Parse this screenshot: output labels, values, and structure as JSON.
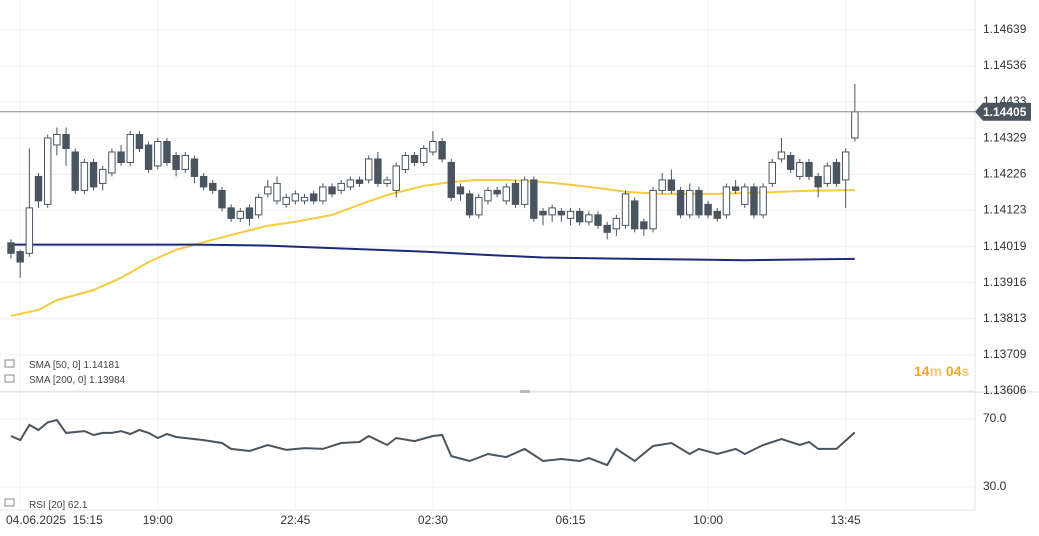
{
  "chart_data": {
    "type": "candlestick",
    "ylim": [
      1.13603,
      1.14725
    ],
    "yticks": [
      1.14639,
      1.14536,
      1.14433,
      1.14329,
      1.14226,
      1.14123,
      1.14019,
      1.13916,
      1.13813,
      1.13709,
      1.13606
    ],
    "xlim": [
      -1.2,
      105.1
    ],
    "xticks": [
      {
        "value": 1,
        "label": "04.06.2025  15:15"
      },
      {
        "value": 16,
        "label": "19:00"
      },
      {
        "value": 31,
        "label": "22:45"
      },
      {
        "value": 46,
        "label": "02:30"
      },
      {
        "value": 61,
        "label": "06:15"
      },
      {
        "value": 76,
        "label": "10:00"
      },
      {
        "value": 91,
        "label": "13:45"
      }
    ],
    "grid": true,
    "up_color": "#ffffff",
    "down_color": "#4a5560",
    "open": [
      1.1403,
      1.14005,
      1.14,
      1.1422,
      1.1414,
      1.1431,
      1.1434,
      1.1429,
      1.1418,
      1.1426,
      1.142,
      1.1423,
      1.1429,
      1.1426,
      1.1434,
      1.1431,
      1.1425,
      1.1432,
      1.1428,
      1.1424,
      1.1427,
      1.1422,
      1.142,
      1.1418,
      1.1413,
      1.141,
      1.1413,
      1.1411,
      1.1417,
      1.1415,
      1.1414,
      1.1415,
      1.1415,
      1.1417,
      1.1415,
      1.1419,
      1.1418,
      1.1419,
      1.1421,
      1.1421,
      1.1427,
      1.142,
      1.1418,
      1.1424,
      1.1428,
      1.1426,
      1.1429,
      1.1432,
      1.1426,
      1.1419,
      1.1417,
      1.1411,
      1.1415,
      1.1418,
      1.1415,
      1.142,
      1.1414,
      1.1421,
      1.1412,
      1.1411,
      1.1412,
      1.141,
      1.1412,
      1.1409,
      1.1411,
      1.1408,
      1.1407,
      1.1408,
      1.1415,
      1.1409,
      1.1407,
      1.1418,
      1.1421,
      1.1418,
      1.1411,
      1.1418,
      1.1414,
      1.1412,
      1.1411,
      1.1419,
      1.1414,
      1.1419,
      1.1411,
      1.142,
      1.1427,
      1.1428,
      1.1422,
      1.1426,
      1.1422,
      1.142,
      1.1426,
      1.1421,
      1.1433
    ],
    "high": [
      1.1404,
      1.1401,
      1.143,
      1.1423,
      1.1434,
      1.1436,
      1.1436,
      1.143,
      1.1427,
      1.1427,
      1.1425,
      1.143,
      1.1431,
      1.1435,
      1.1435,
      1.1432,
      1.1433,
      1.1433,
      1.1429,
      1.1429,
      1.1428,
      1.1423,
      1.1421,
      1.1419,
      1.1414,
      1.1413,
      1.1414,
      1.1417,
      1.1421,
      1.1422,
      1.1417,
      1.1418,
      1.1417,
      1.1418,
      1.142,
      1.142,
      1.1421,
      1.1422,
      1.1422,
      1.1428,
      1.1429,
      1.1422,
      1.1426,
      1.1429,
      1.1429,
      1.1431,
      1.1435,
      1.1433,
      1.1427,
      1.142,
      1.1418,
      1.1417,
      1.1419,
      1.1419,
      1.142,
      1.1421,
      1.1422,
      1.1422,
      1.1413,
      1.1414,
      1.1413,
      1.1413,
      1.1413,
      1.1412,
      1.1412,
      1.1409,
      1.1411,
      1.1418,
      1.1416,
      1.141,
      1.1419,
      1.1423,
      1.1424,
      1.1419,
      1.142,
      1.1419,
      1.1415,
      1.1413,
      1.142,
      1.1421,
      1.142,
      1.142,
      1.142,
      1.1427,
      1.1433,
      1.1429,
      1.1427,
      1.1427,
      1.1423,
      1.1426,
      1.1427,
      1.143,
      1.14485
    ],
    "low": [
      1.13985,
      1.1393,
      1.1399,
      1.1413,
      1.1413,
      1.1428,
      1.1425,
      1.1417,
      1.1417,
      1.1418,
      1.1418,
      1.1422,
      1.1425,
      1.1425,
      1.1429,
      1.1423,
      1.1424,
      1.1425,
      1.1422,
      1.1423,
      1.142,
      1.1418,
      1.1417,
      1.1412,
      1.1409,
      1.1409,
      1.1408,
      1.141,
      1.1416,
      1.1414,
      1.1413,
      1.1414,
      1.1414,
      1.1414,
      1.1414,
      1.1416,
      1.1417,
      1.1418,
      1.1419,
      1.142,
      1.1419,
      1.1419,
      1.1416,
      1.1423,
      1.1425,
      1.1425,
      1.1428,
      1.1426,
      1.1415,
      1.1415,
      1.141,
      1.141,
      1.1414,
      1.1416,
      1.1414,
      1.1413,
      1.1413,
      1.1409,
      1.1408,
      1.1409,
      1.1409,
      1.1408,
      1.1408,
      1.1408,
      1.1407,
      1.1404,
      1.1405,
      1.1407,
      1.1406,
      1.1405,
      1.1406,
      1.1417,
      1.1417,
      1.141,
      1.141,
      1.141,
      1.141,
      1.1409,
      1.141,
      1.1417,
      1.1413,
      1.141,
      1.141,
      1.1419,
      1.1426,
      1.1423,
      1.1421,
      1.1421,
      1.1416,
      1.1419,
      1.1419,
      1.1413,
      1.1432
    ],
    "close": [
      1.14,
      1.13975,
      1.1413,
      1.1415,
      1.1433,
      1.1434,
      1.143,
      1.1418,
      1.1426,
      1.1419,
      1.1424,
      1.1429,
      1.1426,
      1.1434,
      1.143,
      1.1424,
      1.1432,
      1.1426,
      1.1424,
      1.1428,
      1.1422,
      1.1419,
      1.1418,
      1.1413,
      1.141,
      1.1412,
      1.141,
      1.1416,
      1.1419,
      1.142,
      1.1416,
      1.1417,
      1.1416,
      1.1415,
      1.1419,
      1.1417,
      1.142,
      1.1421,
      1.142,
      1.1427,
      1.142,
      1.1421,
      1.1425,
      1.1428,
      1.1426,
      1.143,
      1.1432,
      1.1427,
      1.1416,
      1.1417,
      1.1411,
      1.1416,
      1.1418,
      1.1417,
      1.1419,
      1.1414,
      1.1421,
      1.141,
      1.1411,
      1.1413,
      1.1411,
      1.1412,
      1.1409,
      1.1411,
      1.1408,
      1.1406,
      1.141,
      1.1417,
      1.1407,
      1.1407,
      1.1418,
      1.1421,
      1.1418,
      1.1411,
      1.1418,
      1.1411,
      1.1411,
      1.141,
      1.1419,
      1.1418,
      1.1419,
      1.1411,
      1.1419,
      1.1426,
      1.1429,
      1.1424,
      1.1426,
      1.1422,
      1.1419,
      1.1425,
      1.142,
      1.1429,
      1.14405
    ],
    "current_price": 1.14405,
    "overlays": [
      {
        "name": "SMA [50, 0]",
        "last": 1.14181,
        "color": "#f5cc3d",
        "x": [
          0,
          3,
          5,
          9,
          12,
          15,
          18,
          22,
          25,
          28,
          31,
          35,
          38,
          41,
          45,
          48,
          51,
          54,
          58,
          61,
          64,
          67,
          71,
          74,
          77,
          81,
          84,
          87,
          92
        ],
        "values": [
          1.13821,
          1.13838,
          1.13866,
          1.13895,
          1.1393,
          1.13975,
          1.1401,
          1.14039,
          1.14059,
          1.14079,
          1.1409,
          1.1411,
          1.14139,
          1.14167,
          1.14193,
          1.14204,
          1.1421,
          1.1421,
          1.14204,
          1.14196,
          1.14187,
          1.14176,
          1.1417,
          1.1417,
          1.1417,
          1.14173,
          1.14176,
          1.14179,
          1.14181
        ]
      },
      {
        "name": "SMA [200, 0]",
        "last": 1.13984,
        "color": "#1f2a7a",
        "x": [
          0,
          10,
          20,
          28,
          35,
          45,
          52,
          58,
          65,
          75,
          80,
          85,
          92
        ],
        "values": [
          1.14025,
          1.14025,
          1.14025,
          1.14022,
          1.14015,
          1.14005,
          1.13995,
          1.13988,
          1.13985,
          1.13982,
          1.1398,
          1.13982,
          1.13984
        ]
      }
    ],
    "countdown": [
      "14",
      "m",
      "04",
      "s"
    ],
    "rsi": {
      "name": "RSI [20]",
      "last": 62.1,
      "color": "#4a5560",
      "ylim": [
        16.5,
        84.1
      ],
      "yticks": [
        {
          "value": 70,
          "label": "70.0"
        },
        {
          "value": 30,
          "label": "30.0"
        }
      ],
      "x": [
        0,
        1,
        2,
        3,
        4,
        5,
        6,
        8,
        9,
        10,
        11,
        12,
        13,
        14,
        15,
        16,
        17,
        18,
        21,
        23,
        24,
        26,
        28,
        30,
        32,
        34,
        36,
        38,
        39,
        41,
        42,
        44,
        46,
        47,
        48,
        50,
        52,
        54,
        56,
        58,
        60,
        62,
        63,
        65,
        66,
        68,
        70,
        72,
        74,
        75,
        77,
        79,
        80,
        82,
        84,
        86,
        87,
        88,
        90,
        92
      ],
      "values": [
        60,
        57.6,
        66.5,
        63.5,
        68,
        69.4,
        61.8,
        62.9,
        60.6,
        61.8,
        61.8,
        62.9,
        61.2,
        63.5,
        61.8,
        58.8,
        61.2,
        59.4,
        57.6,
        55.9,
        52.4,
        51.2,
        54.7,
        51.8,
        52.9,
        52.4,
        55.9,
        56.5,
        60,
        54.7,
        58.8,
        57,
        60,
        60.6,
        48.2,
        45.3,
        49.4,
        47.6,
        52.4,
        45.3,
        46.5,
        45.3,
        47,
        42.9,
        52.4,
        45.3,
        54.1,
        55.9,
        49.4,
        52.4,
        49.4,
        52.4,
        49.4,
        54.7,
        58.2,
        54.7,
        56.5,
        52.4,
        52.4,
        62.1
      ]
    }
  }
}
